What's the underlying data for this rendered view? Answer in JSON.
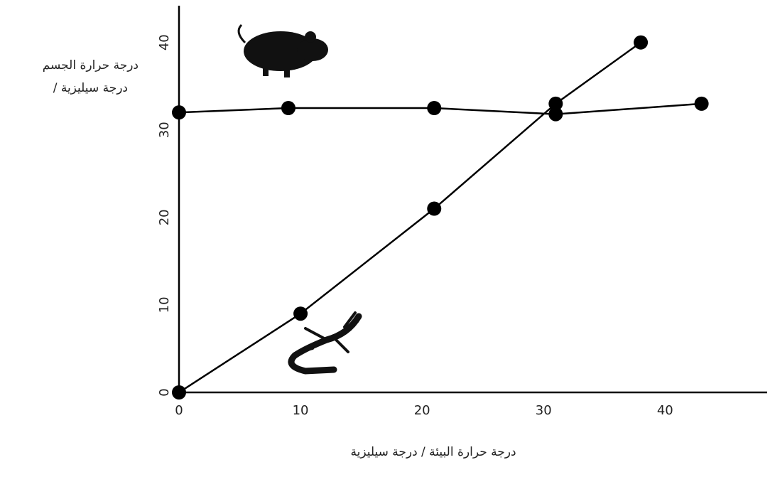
{
  "chart_data": {
    "type": "line",
    "ylabel": [
      "درجة حرارة الجسم",
      "/ درجة سيليزية"
    ],
    "xlabel": "درجة حرارة البيئة / درجة سيليزية",
    "series": [
      {
        "color": "#000000",
        "x": [
          0,
          9,
          21,
          31,
          43
        ],
        "values": [
          32,
          32.5,
          32.5,
          31.8,
          33
        ]
      },
      {
        "color": "#000000",
        "x": [
          0,
          10,
          21,
          31,
          38
        ],
        "values": [
          0,
          9,
          21,
          33,
          40
        ]
      }
    ],
    "xlim": [
      0,
      48.4
    ],
    "ylim": [
      0,
      44.2
    ],
    "xticks": [
      0,
      10,
      20,
      30,
      40
    ],
    "yticks": [
      0,
      10,
      20,
      30,
      40
    ]
  }
}
